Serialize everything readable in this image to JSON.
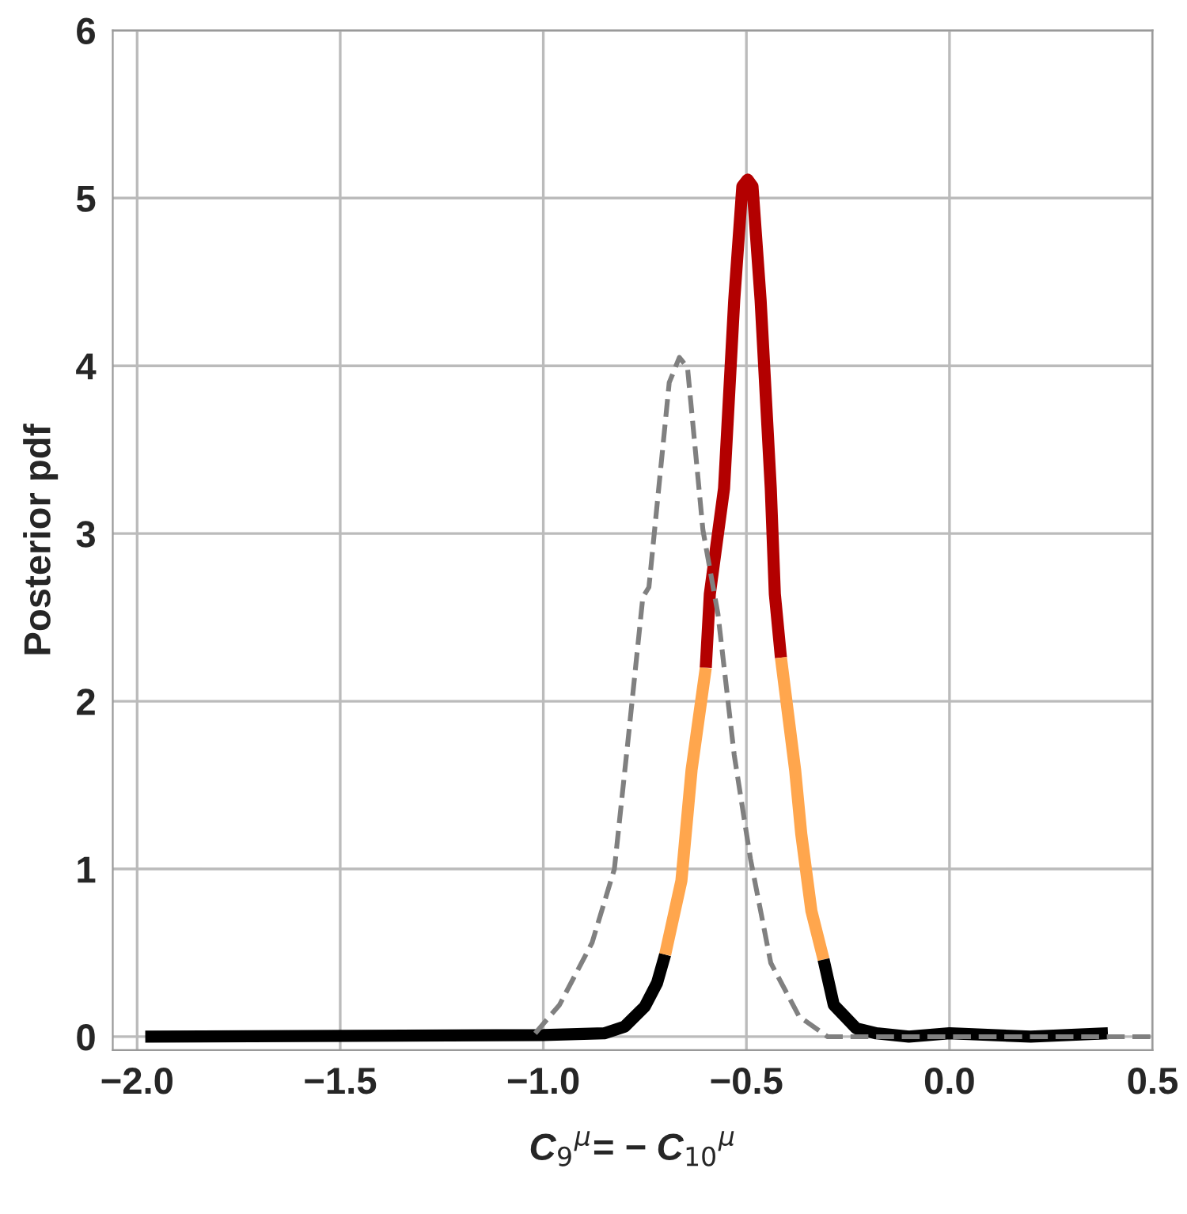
{
  "chart_data": {
    "type": "line",
    "xlabel": "C$_{9}$$^{μ}$= − C$_{10}$$^{μ}$",
    "ylabel": "Posterior pdf",
    "xlim": [
      -2.06,
      0.5
    ],
    "ylim": [
      -0.08,
      6
    ],
    "xticks": [
      {
        "value": -2,
        "label": "−2.0"
      },
      {
        "value": -1.5,
        "label": "−1.5"
      },
      {
        "value": -1,
        "label": "−1.0"
      },
      {
        "value": -0.5,
        "label": "−0.5"
      },
      {
        "value": 0,
        "label": "0.0"
      },
      {
        "value": 0.5,
        "label": "0.5"
      }
    ],
    "yticks": [
      0,
      1,
      2,
      3,
      4,
      5,
      6
    ],
    "grid": true,
    "legend": false,
    "marker": "none",
    "series": [
      {
        "color": "#000000",
        "line_style": "solid",
        "x": [
          -1.98,
          -1.0,
          -0.85,
          -0.8,
          -0.75,
          -0.72,
          -0.7
        ],
        "values": [
          0.0,
          0.01,
          0.02,
          0.06,
          0.18,
          0.32,
          0.49
        ]
      },
      {
        "color": "#ffa64d",
        "line_style": "solid",
        "x": [
          -0.7,
          -0.66,
          -0.635,
          -0.6
        ],
        "values": [
          0.49,
          0.93,
          1.59,
          2.2
        ]
      },
      {
        "color": "#b30000",
        "line_style": "solid",
        "x": [
          -0.6,
          -0.59,
          -0.555,
          -0.53,
          -0.51,
          -0.497,
          -0.485,
          -0.465,
          -0.44,
          -0.43,
          -0.415
        ],
        "values": [
          2.2,
          2.64,
          3.27,
          4.39,
          5.07,
          5.11,
          5.07,
          4.39,
          3.27,
          2.64,
          2.26
        ]
      },
      {
        "color": "#ffa64d",
        "line_style": "solid",
        "x": [
          -0.415,
          -0.38,
          -0.365,
          -0.34,
          -0.31
        ],
        "values": [
          2.26,
          1.59,
          1.21,
          0.75,
          0.46
        ]
      },
      {
        "color": "#000000",
        "line_style": "solid",
        "x": [
          -0.31,
          -0.285,
          -0.23,
          -0.18,
          -0.1,
          0.0,
          0.2,
          0.39
        ],
        "values": [
          0.46,
          0.19,
          0.05,
          0.02,
          0.0,
          0.02,
          0.0,
          0.02
        ]
      },
      {
        "color": "#808080",
        "line_style": "dashed",
        "x": [
          -1.02,
          -0.96,
          -0.88,
          -0.825,
          -0.79,
          -0.755,
          -0.74,
          -0.69,
          -0.665,
          -0.645,
          -0.607,
          -0.57,
          -0.53,
          -0.49,
          -0.44,
          -0.37,
          -0.3,
          0.5
        ],
        "values": [
          0.02,
          0.19,
          0.56,
          1.0,
          1.8,
          2.62,
          2.68,
          3.9,
          4.05,
          3.99,
          3.02,
          2.52,
          1.68,
          1.06,
          0.44,
          0.12,
          0.0,
          0.0
        ]
      }
    ]
  }
}
